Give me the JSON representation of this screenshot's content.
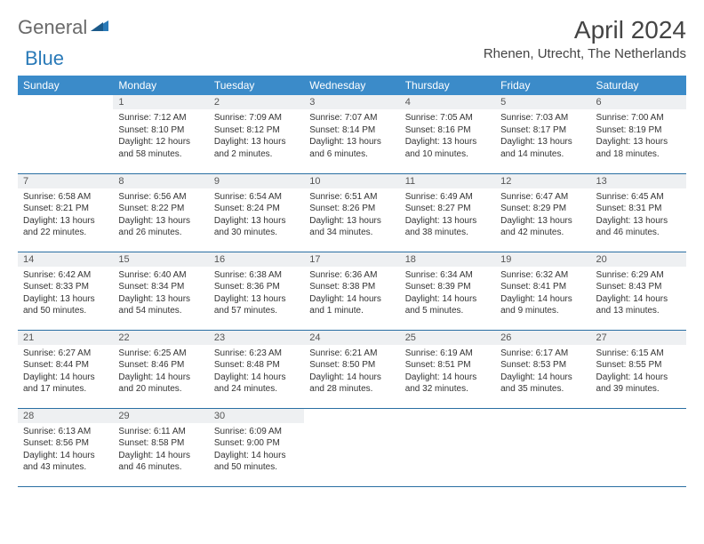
{
  "logo": {
    "part1": "General",
    "part2": "Blue"
  },
  "title": "April 2024",
  "location": "Rhenen, Utrecht, The Netherlands",
  "colors": {
    "header_bg": "#3b8bc9",
    "header_text": "#ffffff",
    "daynum_bg": "#eef0f2",
    "border": "#2a6fa3",
    "logo_gray": "#6a6a6a",
    "logo_blue": "#2a7ab8"
  },
  "days_of_week": [
    "Sunday",
    "Monday",
    "Tuesday",
    "Wednesday",
    "Thursday",
    "Friday",
    "Saturday"
  ],
  "cells": [
    {
      "blank": true
    },
    {
      "n": "1",
      "sr": "Sunrise: 7:12 AM",
      "ss": "Sunset: 8:10 PM",
      "dl": "Daylight: 12 hours and 58 minutes."
    },
    {
      "n": "2",
      "sr": "Sunrise: 7:09 AM",
      "ss": "Sunset: 8:12 PM",
      "dl": "Daylight: 13 hours and 2 minutes."
    },
    {
      "n": "3",
      "sr": "Sunrise: 7:07 AM",
      "ss": "Sunset: 8:14 PM",
      "dl": "Daylight: 13 hours and 6 minutes."
    },
    {
      "n": "4",
      "sr": "Sunrise: 7:05 AM",
      "ss": "Sunset: 8:16 PM",
      "dl": "Daylight: 13 hours and 10 minutes."
    },
    {
      "n": "5",
      "sr": "Sunrise: 7:03 AM",
      "ss": "Sunset: 8:17 PM",
      "dl": "Daylight: 13 hours and 14 minutes."
    },
    {
      "n": "6",
      "sr": "Sunrise: 7:00 AM",
      "ss": "Sunset: 8:19 PM",
      "dl": "Daylight: 13 hours and 18 minutes."
    },
    {
      "n": "7",
      "sr": "Sunrise: 6:58 AM",
      "ss": "Sunset: 8:21 PM",
      "dl": "Daylight: 13 hours and 22 minutes."
    },
    {
      "n": "8",
      "sr": "Sunrise: 6:56 AM",
      "ss": "Sunset: 8:22 PM",
      "dl": "Daylight: 13 hours and 26 minutes."
    },
    {
      "n": "9",
      "sr": "Sunrise: 6:54 AM",
      "ss": "Sunset: 8:24 PM",
      "dl": "Daylight: 13 hours and 30 minutes."
    },
    {
      "n": "10",
      "sr": "Sunrise: 6:51 AM",
      "ss": "Sunset: 8:26 PM",
      "dl": "Daylight: 13 hours and 34 minutes."
    },
    {
      "n": "11",
      "sr": "Sunrise: 6:49 AM",
      "ss": "Sunset: 8:27 PM",
      "dl": "Daylight: 13 hours and 38 minutes."
    },
    {
      "n": "12",
      "sr": "Sunrise: 6:47 AM",
      "ss": "Sunset: 8:29 PM",
      "dl": "Daylight: 13 hours and 42 minutes."
    },
    {
      "n": "13",
      "sr": "Sunrise: 6:45 AM",
      "ss": "Sunset: 8:31 PM",
      "dl": "Daylight: 13 hours and 46 minutes."
    },
    {
      "n": "14",
      "sr": "Sunrise: 6:42 AM",
      "ss": "Sunset: 8:33 PM",
      "dl": "Daylight: 13 hours and 50 minutes."
    },
    {
      "n": "15",
      "sr": "Sunrise: 6:40 AM",
      "ss": "Sunset: 8:34 PM",
      "dl": "Daylight: 13 hours and 54 minutes."
    },
    {
      "n": "16",
      "sr": "Sunrise: 6:38 AM",
      "ss": "Sunset: 8:36 PM",
      "dl": "Daylight: 13 hours and 57 minutes."
    },
    {
      "n": "17",
      "sr": "Sunrise: 6:36 AM",
      "ss": "Sunset: 8:38 PM",
      "dl": "Daylight: 14 hours and 1 minute."
    },
    {
      "n": "18",
      "sr": "Sunrise: 6:34 AM",
      "ss": "Sunset: 8:39 PM",
      "dl": "Daylight: 14 hours and 5 minutes."
    },
    {
      "n": "19",
      "sr": "Sunrise: 6:32 AM",
      "ss": "Sunset: 8:41 PM",
      "dl": "Daylight: 14 hours and 9 minutes."
    },
    {
      "n": "20",
      "sr": "Sunrise: 6:29 AM",
      "ss": "Sunset: 8:43 PM",
      "dl": "Daylight: 14 hours and 13 minutes."
    },
    {
      "n": "21",
      "sr": "Sunrise: 6:27 AM",
      "ss": "Sunset: 8:44 PM",
      "dl": "Daylight: 14 hours and 17 minutes."
    },
    {
      "n": "22",
      "sr": "Sunrise: 6:25 AM",
      "ss": "Sunset: 8:46 PM",
      "dl": "Daylight: 14 hours and 20 minutes."
    },
    {
      "n": "23",
      "sr": "Sunrise: 6:23 AM",
      "ss": "Sunset: 8:48 PM",
      "dl": "Daylight: 14 hours and 24 minutes."
    },
    {
      "n": "24",
      "sr": "Sunrise: 6:21 AM",
      "ss": "Sunset: 8:50 PM",
      "dl": "Daylight: 14 hours and 28 minutes."
    },
    {
      "n": "25",
      "sr": "Sunrise: 6:19 AM",
      "ss": "Sunset: 8:51 PM",
      "dl": "Daylight: 14 hours and 32 minutes."
    },
    {
      "n": "26",
      "sr": "Sunrise: 6:17 AM",
      "ss": "Sunset: 8:53 PM",
      "dl": "Daylight: 14 hours and 35 minutes."
    },
    {
      "n": "27",
      "sr": "Sunrise: 6:15 AM",
      "ss": "Sunset: 8:55 PM",
      "dl": "Daylight: 14 hours and 39 minutes."
    },
    {
      "n": "28",
      "sr": "Sunrise: 6:13 AM",
      "ss": "Sunset: 8:56 PM",
      "dl": "Daylight: 14 hours and 43 minutes."
    },
    {
      "n": "29",
      "sr": "Sunrise: 6:11 AM",
      "ss": "Sunset: 8:58 PM",
      "dl": "Daylight: 14 hours and 46 minutes."
    },
    {
      "n": "30",
      "sr": "Sunrise: 6:09 AM",
      "ss": "Sunset: 9:00 PM",
      "dl": "Daylight: 14 hours and 50 minutes."
    },
    {
      "blank": true
    },
    {
      "blank": true
    },
    {
      "blank": true
    },
    {
      "blank": true
    }
  ]
}
